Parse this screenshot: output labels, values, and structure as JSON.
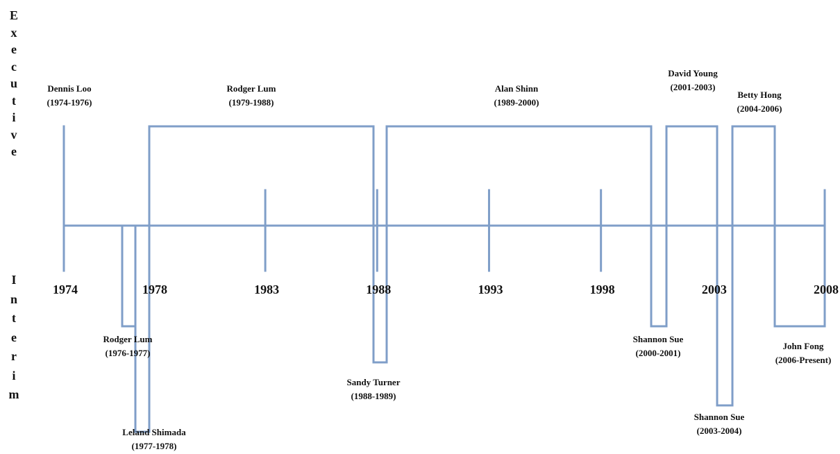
{
  "side_labels": {
    "executive": "Executive",
    "interim": "Interim"
  },
  "colors": {
    "line": "#7f9ec8",
    "text": "#111111",
    "background": "#ffffff"
  },
  "timeline": {
    "start_year": 1974,
    "end_year": 2008,
    "tick_years": [
      "1974",
      "1978",
      "1983",
      "1988",
      "1993",
      "1998",
      "2003",
      "2008"
    ]
  },
  "executive_terms": [
    {
      "name": "Dennis Loo",
      "years": "(1974-1976)"
    },
    {
      "name": "Rodger Lum",
      "years": "(1979-1988)"
    },
    {
      "name": "Alan Shinn",
      "years": "(1989-2000)"
    },
    {
      "name": "David Young",
      "years": "(2001-2003)"
    },
    {
      "name": "Betty Hong",
      "years": "(2004-2006)"
    }
  ],
  "interim_terms": [
    {
      "name": "Rodger Lum",
      "years": "(1976-1977)"
    },
    {
      "name": "Leland Shimada",
      "years": "(1977-1978)"
    },
    {
      "name": "Sandy Turner",
      "years": "(1988-1989)"
    },
    {
      "name": "Shannon Sue",
      "years": "(2000-2001)"
    },
    {
      "name": "Shannon Sue",
      "years": "(2003-2004)"
    },
    {
      "name": "John Fong",
      "years": "(2006-Present)"
    }
  ]
}
